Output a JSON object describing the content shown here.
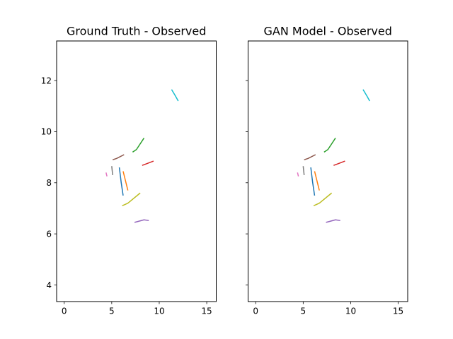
{
  "chart_data": [
    {
      "type": "line",
      "title": "Ground Truth - Observed",
      "xlim": [
        -0.8,
        16.0
      ],
      "ylim": [
        3.35,
        13.55
      ],
      "xticks": [
        0,
        5,
        10,
        15
      ],
      "yticks": [
        4,
        6,
        8,
        10,
        12
      ],
      "grid": false,
      "series": [
        {
          "color": "#1f77b4",
          "x": [
            5.8,
            6.0,
            6.2
          ],
          "y": [
            8.6,
            8.0,
            7.5
          ]
        },
        {
          "color": "#ff7f0e",
          "x": [
            6.2,
            6.5,
            6.7
          ],
          "y": [
            8.45,
            8.0,
            7.7
          ]
        },
        {
          "color": "#2ca02c",
          "x": [
            7.2,
            7.6,
            8.4
          ],
          "y": [
            9.2,
            9.3,
            9.75
          ]
        },
        {
          "color": "#d62728",
          "x": [
            8.2,
            8.7,
            9.4
          ],
          "y": [
            8.68,
            8.75,
            8.85
          ]
        },
        {
          "color": "#9467bd",
          "x": [
            7.4,
            8.4,
            8.9
          ],
          "y": [
            6.45,
            6.55,
            6.52
          ]
        },
        {
          "color": "#8c564b",
          "x": [
            5.1,
            5.5,
            6.3
          ],
          "y": [
            8.9,
            8.95,
            9.1
          ]
        },
        {
          "color": "#e377c2",
          "x": [
            4.4,
            4.5
          ],
          "y": [
            8.4,
            8.25
          ]
        },
        {
          "color": "#7f7f7f",
          "x": [
            5.0,
            5.1
          ],
          "y": [
            8.65,
            8.3
          ]
        },
        {
          "color": "#bcbd22",
          "x": [
            6.1,
            6.7,
            8.0
          ],
          "y": [
            7.1,
            7.2,
            7.6
          ]
        },
        {
          "color": "#17becf",
          "x": [
            11.3,
            11.7,
            12.0
          ],
          "y": [
            11.65,
            11.4,
            11.2
          ]
        }
      ]
    },
    {
      "type": "line",
      "title": "GAN Model - Observed",
      "xlim": [
        -0.8,
        16.0
      ],
      "ylim": [
        3.35,
        13.55
      ],
      "xticks": [
        0,
        5,
        10,
        15
      ],
      "yticks": [
        4,
        6,
        8,
        10,
        12
      ],
      "grid": false,
      "series": [
        {
          "color": "#1f77b4",
          "x": [
            5.8,
            6.0,
            6.2
          ],
          "y": [
            8.6,
            8.0,
            7.5
          ]
        },
        {
          "color": "#ff7f0e",
          "x": [
            6.2,
            6.5,
            6.7
          ],
          "y": [
            8.45,
            8.0,
            7.7
          ]
        },
        {
          "color": "#2ca02c",
          "x": [
            7.2,
            7.6,
            8.4
          ],
          "y": [
            9.2,
            9.3,
            9.75
          ]
        },
        {
          "color": "#d62728",
          "x": [
            8.2,
            8.7,
            9.4
          ],
          "y": [
            8.68,
            8.75,
            8.85
          ]
        },
        {
          "color": "#9467bd",
          "x": [
            7.4,
            8.4,
            8.9
          ],
          "y": [
            6.45,
            6.55,
            6.52
          ]
        },
        {
          "color": "#8c564b",
          "x": [
            5.1,
            5.5,
            6.3
          ],
          "y": [
            8.9,
            8.95,
            9.1
          ]
        },
        {
          "color": "#e377c2",
          "x": [
            4.4,
            4.5
          ],
          "y": [
            8.4,
            8.25
          ]
        },
        {
          "color": "#7f7f7f",
          "x": [
            5.0,
            5.1
          ],
          "y": [
            8.65,
            8.3
          ]
        },
        {
          "color": "#bcbd22",
          "x": [
            6.1,
            6.7,
            8.0
          ],
          "y": [
            7.1,
            7.2,
            7.6
          ]
        },
        {
          "color": "#17becf",
          "x": [
            11.3,
            11.7,
            12.0
          ],
          "y": [
            11.65,
            11.4,
            11.2
          ]
        }
      ]
    }
  ]
}
